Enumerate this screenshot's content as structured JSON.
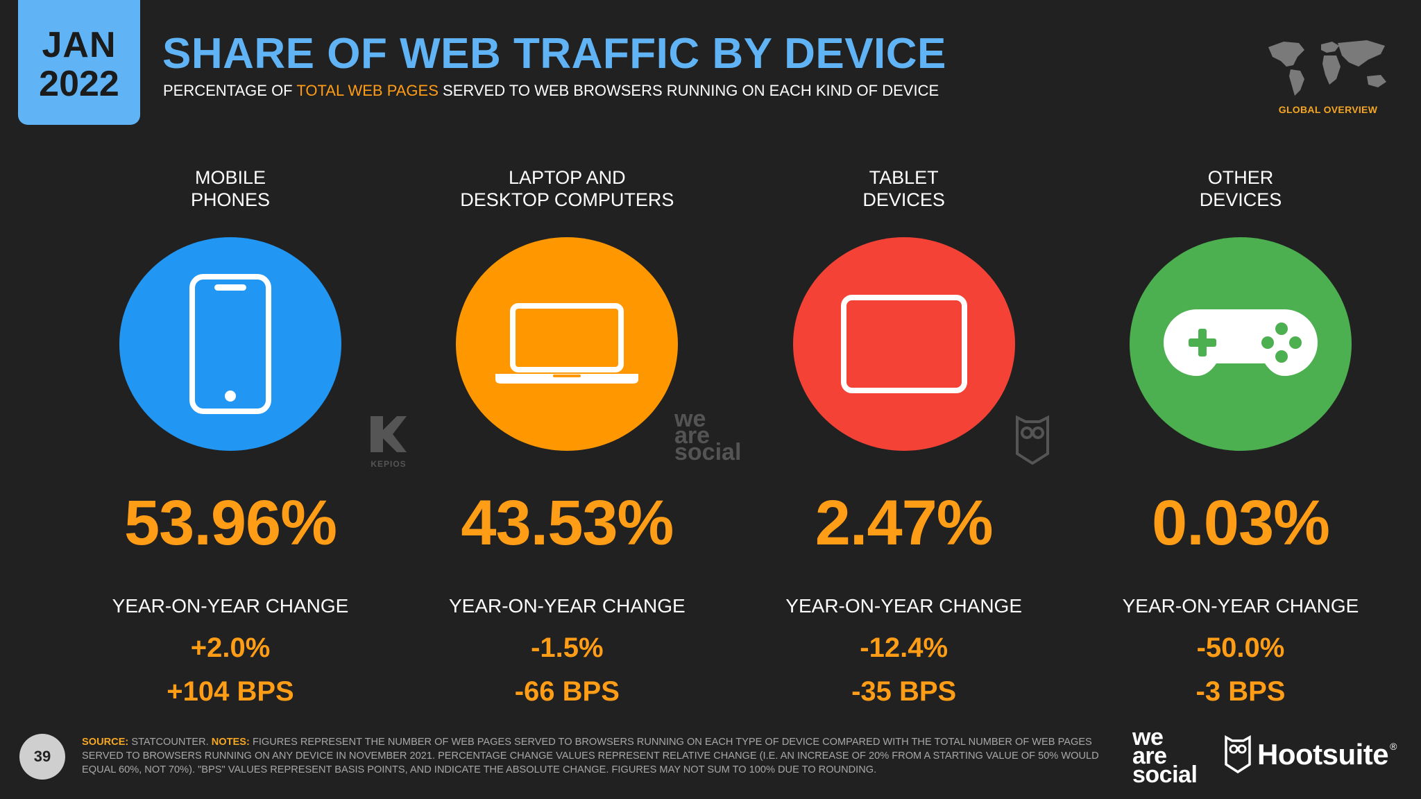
{
  "header": {
    "month": "JAN",
    "year": "2022",
    "title": "SHARE OF WEB TRAFFIC BY DEVICE",
    "subtitle_pre": "PERCENTAGE OF ",
    "subtitle_highlight": "TOTAL WEB PAGES",
    "subtitle_post": " SERVED TO WEB BROWSERS RUNNING ON EACH KIND OF DEVICE",
    "section_label": "GLOBAL OVERVIEW"
  },
  "devices": [
    {
      "label": "MOBILE\nPHONES",
      "share": "53.96%",
      "yoy_label": "YEAR-ON-YEAR CHANGE",
      "yoy_pct": "+2.0%",
      "yoy_bps": "+104 BPS",
      "color": "#2196F3",
      "icon": "smartphone-icon"
    },
    {
      "label": "LAPTOP AND\nDESKTOP COMPUTERS",
      "share": "43.53%",
      "yoy_label": "YEAR-ON-YEAR CHANGE",
      "yoy_pct": "-1.5%",
      "yoy_bps": "-66 BPS",
      "color": "#FF9800",
      "icon": "laptop-icon"
    },
    {
      "label": "TABLET\nDEVICES",
      "share": "2.47%",
      "yoy_label": "YEAR-ON-YEAR CHANGE",
      "yoy_pct": "-12.4%",
      "yoy_bps": "-35 BPS",
      "color": "#F44336",
      "icon": "tablet-icon"
    },
    {
      "label": "OTHER\nDEVICES",
      "share": "0.03%",
      "yoy_label": "YEAR-ON-YEAR CHANGE",
      "yoy_pct": "-50.0%",
      "yoy_bps": "-3 BPS",
      "color": "#4CAF50",
      "icon": "gamepad-icon"
    }
  ],
  "watermarks": {
    "kepios": "KEPIOS",
    "we_are_social": [
      "we",
      "are",
      "social"
    ]
  },
  "footer": {
    "page_number": "39",
    "source_label": "SOURCE:",
    "source_text": " STATCOUNTER. ",
    "notes_label": "NOTES:",
    "notes_text": " FIGURES REPRESENT THE NUMBER OF WEB PAGES SERVED TO BROWSERS RUNNING ON EACH TYPE OF DEVICE COMPARED WITH THE TOTAL NUMBER OF WEB PAGES SERVED TO BROWSERS RUNNING ON ANY DEVICE IN NOVEMBER 2021. PERCENTAGE CHANGE VALUES REPRESENT RELATIVE CHANGE (I.E. AN INCREASE OF 20% FROM A STARTING VALUE OF 50% WOULD EQUAL 60%, NOT 70%). \"BPS\" VALUES REPRESENT BASIS POINTS, AND INDICATE THE ABSOLUTE CHANGE. FIGURES MAY NOT SUM TO 100% DUE TO ROUNDING.",
    "brand_was": [
      "we",
      "are",
      "social"
    ],
    "brand_hootsuite": "Hootsuite",
    "brand_hootsuite_mark": "®"
  }
}
